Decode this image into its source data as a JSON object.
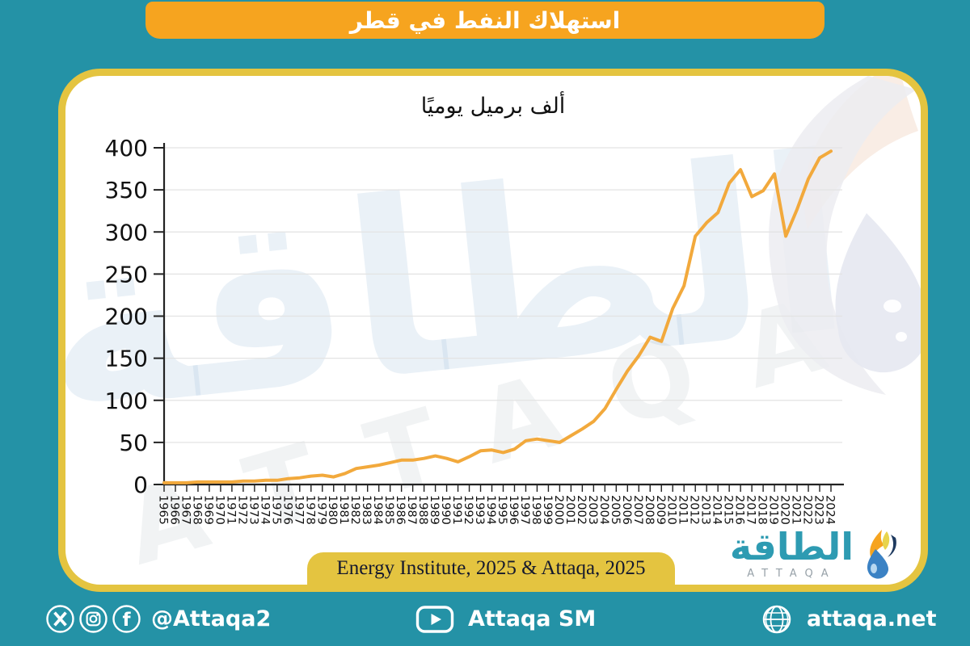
{
  "banner": {
    "title": "استهلاك النفط في قطر"
  },
  "chart_data": {
    "type": "line",
    "title": "ألف برميل يوميًا",
    "x": [
      1965,
      1966,
      1967,
      1968,
      1969,
      1970,
      1971,
      1972,
      1973,
      1974,
      1975,
      1976,
      1977,
      1978,
      1979,
      1980,
      1981,
      1982,
      1983,
      1984,
      1985,
      1986,
      1987,
      1988,
      1989,
      1990,
      1991,
      1992,
      1993,
      1994,
      1995,
      1996,
      1997,
      1998,
      1999,
      2000,
      2001,
      2002,
      2003,
      2004,
      2005,
      2006,
      2007,
      2008,
      2009,
      2010,
      2011,
      2012,
      2013,
      2014,
      2015,
      2016,
      2017,
      2018,
      2019,
      2020,
      2021,
      2022,
      2023,
      2024
    ],
    "values": [
      2,
      2,
      2,
      3,
      3,
      3,
      3,
      4,
      4,
      5,
      5,
      7,
      8,
      10,
      11,
      9,
      13,
      19,
      21,
      23,
      26,
      29,
      29,
      31,
      34,
      31,
      27,
      33,
      40,
      41,
      38,
      42,
      52,
      54,
      52,
      50,
      58,
      66,
      75,
      90,
      113,
      135,
      153,
      175,
      170,
      209,
      236,
      295,
      311,
      323,
      358,
      374,
      342,
      349,
      369,
      295,
      327,
      363,
      388,
      396
    ],
    "xlabel": "",
    "ylabel": "",
    "ylim": [
      0,
      400
    ],
    "yticks": [
      0,
      50,
      100,
      150,
      200,
      250,
      300,
      350,
      400
    ],
    "grid": true,
    "legend_position": "none",
    "line_color": "#F2A93C",
    "source": "Energy Institute, 2025 & Attaqa, 2025"
  },
  "attribution": {
    "text": "Energy Institute, 2025 & Attaqa, 2025"
  },
  "logo": {
    "arabic": "الطاقة",
    "latin": "ATTAQA"
  },
  "watermark": {
    "arabic": "الطاقة",
    "latin": "ATTAQA"
  },
  "footer": {
    "handle": "@Attaqa2",
    "youtube_label": "Attaqa SM",
    "website": "attaqa.net"
  },
  "colors": {
    "background": "#2492A6",
    "banner": "#F6A41F",
    "gold": "#E4C440",
    "line": "#F2A93C",
    "logo_teal": "#2E9BB2"
  }
}
